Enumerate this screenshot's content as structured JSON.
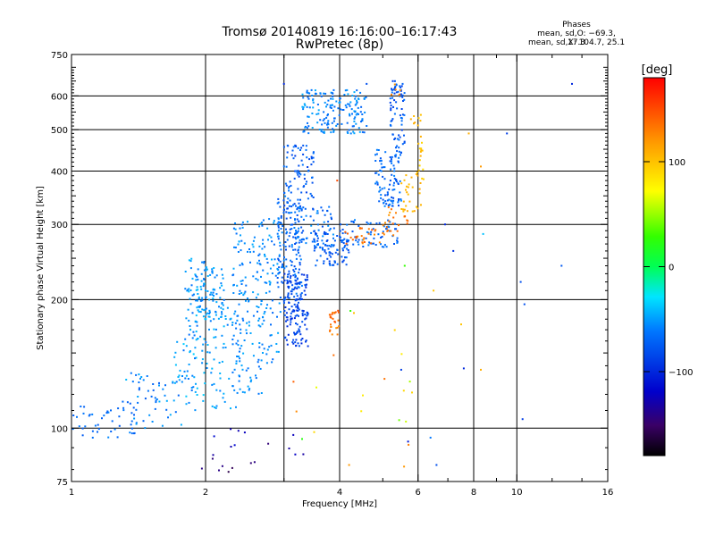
{
  "header": {
    "title": "Tromsø 20140819 16:16:00–16:17:43",
    "subtitle": "RwPretec (8p)",
    "stats_title": "Phases",
    "stats_o": "mean, sd,O: −69.3, 17.3",
    "stats_x": "mean, sd,X: 104.7, 25.1"
  },
  "chart_data": {
    "type": "scatter",
    "xscale": "log",
    "yscale": "log",
    "xlim": [
      1,
      16
    ],
    "ylim": [
      75,
      750
    ],
    "xlabel": "Frequency [MHz]",
    "ylabel": "Stationary phase Virtual Height [km]",
    "xticks": [
      {
        "v": 1,
        "label": "1"
      },
      {
        "v": 2,
        "label": "2"
      },
      {
        "v": 4,
        "label": "4"
      },
      {
        "v": 6,
        "label": "6"
      },
      {
        "v": 8,
        "label": "8"
      },
      {
        "v": 10,
        "label": "10"
      },
      {
        "v": 16,
        "label": "16"
      }
    ],
    "xminor": [
      3,
      5,
      7,
      9,
      12,
      14
    ],
    "xgrid": [
      2,
      3,
      4,
      6,
      8,
      10
    ],
    "yticks": [
      {
        "v": 75,
        "label": "75"
      },
      {
        "v": 100,
        "label": "100"
      },
      {
        "v": 200,
        "label": "200"
      },
      {
        "v": 300,
        "label": "300"
      },
      {
        "v": 400,
        "label": "400"
      },
      {
        "v": 500,
        "label": "500"
      },
      {
        "v": 600,
        "label": "600"
      },
      {
        "v": 750,
        "label": "750"
      }
    ],
    "ygrid": [
      100,
      200,
      300,
      400,
      500,
      600
    ],
    "grid": true,
    "colorbar": {
      "label": "[deg]",
      "range": [
        -180,
        180
      ],
      "ticks": [
        {
          "v": 100,
          "label": "100"
        },
        {
          "v": 0,
          "label": "0"
        },
        {
          "v": -100,
          "label": "−100"
        }
      ]
    },
    "clusters": [
      {
        "f": [
          1.0,
          1.4
        ],
        "h": [
          95,
          115
        ],
        "phase": [
          -55,
          -75
        ],
        "n": 45
      },
      {
        "f": [
          1.3,
          1.9
        ],
        "h": [
          100,
          135
        ],
        "phase": [
          -40,
          -75
        ],
        "n": 60
      },
      {
        "f": [
          1.7,
          2.0
        ],
        "h": [
          110,
          160
        ],
        "phase": [
          -35,
          -65
        ],
        "n": 35
      },
      {
        "f": [
          1.8,
          2.05
        ],
        "h": [
          150,
          250
        ],
        "phase": [
          -40,
          -65
        ],
        "n": 70
      },
      {
        "f": [
          1.9,
          2.2
        ],
        "h": [
          180,
          240
        ],
        "phase": [
          -40,
          -60
        ],
        "n": 80
      },
      {
        "f": [
          2.0,
          2.4
        ],
        "h": [
          110,
          200
        ],
        "phase": [
          -40,
          -60
        ],
        "n": 60
      },
      {
        "f": [
          2.3,
          2.7
        ],
        "h": [
          120,
          310
        ],
        "phase": [
          -45,
          -65
        ],
        "n": 140
      },
      {
        "f": [
          2.6,
          2.95
        ],
        "h": [
          140,
          320
        ],
        "phase": [
          -45,
          -70
        ],
        "n": 80
      },
      {
        "f": [
          2.9,
          3.3
        ],
        "h": [
          200,
          350
        ],
        "phase": [
          -55,
          -85
        ],
        "n": 160
      },
      {
        "f": [
          3.0,
          3.4
        ],
        "h": [
          155,
          230
        ],
        "phase": [
          -75,
          -100
        ],
        "n": 140
      },
      {
        "f": [
          3.0,
          3.5
        ],
        "h": [
          320,
          460
        ],
        "phase": [
          -60,
          -90
        ],
        "n": 90
      },
      {
        "f": [
          3.2,
          3.9
        ],
        "h": [
          260,
          330
        ],
        "phase": [
          -50,
          -80
        ],
        "n": 70
      },
      {
        "f": [
          3.3,
          4.6
        ],
        "h": [
          490,
          620
        ],
        "phase": [
          -45,
          -70
        ],
        "n": 170
      },
      {
        "f": [
          3.5,
          4.2
        ],
        "h": [
          240,
          290
        ],
        "phase": [
          -60,
          -90
        ],
        "n": 80
      },
      {
        "f": [
          4.0,
          5.4
        ],
        "h": [
          265,
          310
        ],
        "phase": [
          -55,
          -80
        ],
        "n": 70
      },
      {
        "f": [
          4.8,
          5.5
        ],
        "h": [
          330,
          450
        ],
        "phase": [
          -55,
          -85
        ],
        "n": 100
      },
      {
        "f": [
          5.2,
          5.6
        ],
        "h": [
          450,
          650
        ],
        "phase": [
          -60,
          -90
        ],
        "n": 70
      },
      {
        "f": [
          3.8,
          4.0
        ],
        "h": [
          165,
          190
        ],
        "phase": [
          150,
          120
        ],
        "n": 25
      },
      {
        "f": [
          4.1,
          5.0
        ],
        "h": [
          270,
          295
        ],
        "phase": [
          150,
          120
        ],
        "n": 25
      },
      {
        "f": [
          5.0,
          5.7
        ],
        "h": [
          280,
          330
        ],
        "phase": [
          140,
          120
        ],
        "n": 25
      },
      {
        "f": [
          5.5,
          6.1
        ],
        "h": [
          320,
          400
        ],
        "phase": [
          120,
          100
        ],
        "n": 30
      },
      {
        "f": [
          6.0,
          6.2
        ],
        "h": [
          380,
          500
        ],
        "phase": [
          110,
          90
        ],
        "n": 15
      },
      {
        "f": [
          5.7,
          6.1
        ],
        "h": [
          500,
          560
        ],
        "phase": [
          115,
          95
        ],
        "n": 8
      },
      {
        "f": [
          5.2,
          5.5
        ],
        "h": [
          600,
          640
        ],
        "phase": [
          140,
          120
        ],
        "n": 6
      },
      {
        "f": [
          1.9,
          3.5
        ],
        "h": [
          78,
          100
        ],
        "phase": [
          -110,
          -160
        ],
        "n": 20
      },
      {
        "f": [
          3.0,
          6.5
        ],
        "h": [
          78,
          200
        ],
        "phase": [
          150,
          20
        ],
        "n": 20
      }
    ],
    "points": [
      {
        "f": 6.9,
        "h": 300,
        "phase": -100
      },
      {
        "f": 7.2,
        "h": 260,
        "phase": -95
      },
      {
        "f": 7.8,
        "h": 490,
        "phase": 110
      },
      {
        "f": 8.3,
        "h": 410,
        "phase": 120
      },
      {
        "f": 9.5,
        "h": 490,
        "phase": -90
      },
      {
        "f": 13.3,
        "h": 640,
        "phase": -100
      },
      {
        "f": 8.4,
        "h": 285,
        "phase": -40
      },
      {
        "f": 10.2,
        "h": 220,
        "phase": -80
      },
      {
        "f": 10.4,
        "h": 195,
        "phase": -80
      },
      {
        "f": 12.6,
        "h": 240,
        "phase": -75
      },
      {
        "f": 10.3,
        "h": 105,
        "phase": -90
      },
      {
        "f": 7.6,
        "h": 138,
        "phase": -100
      },
      {
        "f": 8.3,
        "h": 137,
        "phase": 110
      },
      {
        "f": 6.6,
        "h": 82,
        "phase": -80
      },
      {
        "f": 4.2,
        "h": 82,
        "phase": 120
      },
      {
        "f": 5.5,
        "h": 137,
        "phase": -90
      },
      {
        "f": 5.7,
        "h": 93,
        "phase": -110
      },
      {
        "f": 6.5,
        "h": 210,
        "phase": 100
      },
      {
        "f": 7.5,
        "h": 175,
        "phase": 100
      },
      {
        "f": 3.0,
        "h": 640,
        "phase": -100
      },
      {
        "f": 4.6,
        "h": 640,
        "phase": -80
      },
      {
        "f": 3.95,
        "h": 380,
        "phase": 150
      },
      {
        "f": 5.6,
        "h": 240,
        "phase": 30
      },
      {
        "f": 6.4,
        "h": 95,
        "phase": -60
      }
    ]
  }
}
